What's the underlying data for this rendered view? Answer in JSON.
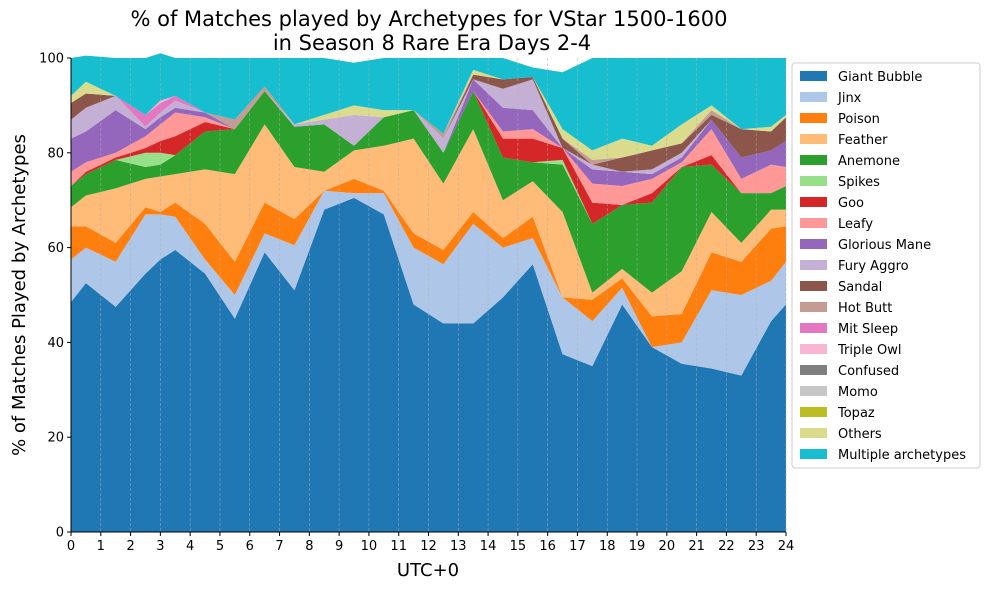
{
  "chart_data": {
    "type": "area",
    "stacked": true,
    "title": "% of Matches played by Archetypes for VStar 1500-1600",
    "subtitle": "in Season 8 Rare Era Days 2-4",
    "xlabel": "UTC+0",
    "ylabel": "% of Matches Played by Archetypes",
    "xlim": [
      0,
      24
    ],
    "ylim": [
      0,
      100
    ],
    "x_ticks": [
      "0",
      "1",
      "2",
      "3",
      "4",
      "5",
      "6",
      "7",
      "8",
      "9",
      "10",
      "11",
      "12",
      "13",
      "14",
      "15",
      "16",
      "17",
      "18",
      "19",
      "20",
      "21",
      "22",
      "23",
      "24"
    ],
    "y_ticks": [
      "0",
      "20",
      "40",
      "60",
      "80",
      "100"
    ],
    "grid_x": true,
    "grid_y": false,
    "legend_position": "outside-right",
    "x": [
      0,
      0.5,
      1.5,
      2.5,
      3,
      3.5,
      4.5,
      5.5,
      6.5,
      7.5,
      8.5,
      9.5,
      10.5,
      11.5,
      12.5,
      13.5,
      14.5,
      15.5,
      16.5,
      17.5,
      18.5,
      19.5,
      20.5,
      21.5,
      22.5,
      23.5,
      24
    ],
    "series": [
      {
        "name": "Giant Bubble",
        "color": "#1f77b4",
        "values": [
          48.5,
          52.5,
          47.5,
          54.5,
          57.5,
          59.5,
          54.5,
          45,
          59,
          51,
          68,
          70.5,
          67,
          48,
          44,
          44,
          49.5,
          56.5,
          37.5,
          35,
          48,
          39,
          35.5,
          34.5,
          33,
          44.5,
          48
        ]
      },
      {
        "name": "Jinx",
        "color": "#aec7e8",
        "values": [
          9,
          7.5,
          9.5,
          12.5,
          9.5,
          7,
          3,
          5,
          4,
          9.5,
          4,
          1,
          4.5,
          12,
          12.5,
          21,
          10.5,
          5.5,
          12,
          9.5,
          3.5,
          0,
          4.5,
          16.5,
          17,
          8.5,
          9
        ]
      },
      {
        "name": "Poison",
        "color": "#ff7f0e",
        "values": [
          7,
          4.5,
          4,
          1.5,
          0.5,
          3,
          7.5,
          7,
          6.5,
          5.5,
          0,
          3,
          0.5,
          3,
          3,
          2.5,
          2,
          4.5,
          0,
          4.5,
          2,
          6.5,
          6,
          8,
          7,
          11,
          7.5
        ]
      },
      {
        "name": "Feather",
        "color": "#ffbb78",
        "values": [
          4,
          6.5,
          11.5,
          6,
          7.5,
          6,
          11.5,
          18.5,
          16.5,
          11,
          4,
          6,
          9.5,
          20,
          14,
          17.5,
          8,
          7.5,
          18,
          1.5,
          2,
          5,
          9,
          8.5,
          4,
          4,
          3.5
        ]
      },
      {
        "name": "Anemone",
        "color": "#2ca02c",
        "values": [
          4.5,
          4.5,
          6,
          2.5,
          2.5,
          4,
          8,
          9.5,
          7,
          8.5,
          10,
          1,
          6,
          6,
          6.5,
          8,
          9,
          4,
          10,
          14.5,
          13.5,
          19,
          22,
          10,
          10.5,
          3.5,
          5
        ]
      },
      {
        "name": "Spikes",
        "color": "#98df8a",
        "values": [
          0,
          0,
          0,
          3,
          2.5,
          0,
          0,
          0,
          0,
          0,
          0,
          0,
          0,
          0,
          0,
          0,
          0,
          0,
          1,
          0,
          0,
          0,
          0,
          0,
          0,
          0,
          0
        ]
      },
      {
        "name": "Goo",
        "color": "#d62728",
        "values": [
          0,
          0.5,
          0.5,
          1,
          2.5,
          4,
          2,
          0,
          0,
          0,
          0,
          0,
          0,
          0,
          0,
          0,
          4,
          5,
          2.5,
          4.5,
          0,
          2,
          0,
          2,
          0,
          0,
          0
        ]
      },
      {
        "name": "Leafy",
        "color": "#ff9896",
        "values": [
          3,
          2,
          1,
          2.5,
          3.5,
          5,
          1,
          0,
          0,
          0,
          0,
          0,
          0,
          0,
          0,
          0,
          1.5,
          2,
          0,
          4,
          4,
          3,
          1,
          5.5,
          3,
          6,
          4
        ]
      },
      {
        "name": "Glorious Mane",
        "color": "#9467bd",
        "values": [
          7,
          6.5,
          9,
          1.5,
          1.5,
          1,
          1,
          0,
          0,
          0,
          0,
          0,
          0,
          0,
          0,
          2.5,
          5,
          4,
          0,
          3,
          3,
          1,
          1,
          2,
          4.5,
          3,
          5.5
        ]
      },
      {
        "name": "Fury Aggro",
        "color": "#c5b0d5",
        "values": [
          4,
          5,
          3,
          0.5,
          1,
          1.5,
          0,
          0,
          0,
          0.5,
          1,
          6.5,
          0,
          0,
          3,
          0,
          4,
          6.5,
          0,
          1,
          0,
          1,
          1,
          0,
          0,
          0,
          0
        ]
      },
      {
        "name": "Sandal",
        "color": "#8c564b",
        "values": [
          3.5,
          3,
          0,
          0,
          0,
          0,
          0,
          0,
          0,
          0,
          0,
          0,
          0,
          0,
          0,
          1,
          2,
          0.5,
          2,
          0,
          3,
          4,
          2,
          1,
          6,
          4,
          5
        ]
      },
      {
        "name": "Hot Butt",
        "color": "#c49c94",
        "values": [
          0,
          0,
          0,
          0,
          0,
          0,
          0,
          2,
          1,
          0,
          0,
          0,
          0,
          0,
          1,
          0,
          0,
          0,
          0,
          1,
          0,
          0,
          0,
          1,
          0,
          0,
          0
        ]
      },
      {
        "name": "Mit Sleep",
        "color": "#e377c2",
        "values": [
          0,
          0,
          0,
          2.5,
          2,
          1,
          0,
          0,
          0,
          0,
          0,
          0,
          0,
          0,
          0,
          0,
          0,
          0,
          0,
          0,
          0,
          0,
          0,
          0,
          0,
          0,
          0
        ]
      },
      {
        "name": "Triple Owl",
        "color": "#f7b6d2",
        "values": [
          0,
          0,
          0,
          0,
          0.5,
          0,
          0,
          0,
          0,
          0,
          0,
          0,
          0,
          0,
          0,
          0,
          0,
          0,
          0,
          0,
          0,
          0,
          0,
          0,
          0,
          0,
          0
        ]
      },
      {
        "name": "Confused",
        "color": "#7f7f7f",
        "values": [
          0,
          0,
          0,
          0,
          0,
          0,
          0,
          0,
          0,
          0,
          0,
          0,
          0,
          0,
          0,
          0,
          0,
          0,
          0,
          0,
          0,
          0,
          0,
          0,
          0,
          0,
          0
        ]
      },
      {
        "name": "Momo",
        "color": "#c7c7c7",
        "values": [
          0,
          0,
          0,
          0,
          0,
          0,
          0,
          0,
          0,
          0,
          0,
          0,
          0,
          0,
          0,
          0,
          0,
          0,
          0,
          0,
          0,
          0,
          0,
          0,
          0,
          0,
          0
        ]
      },
      {
        "name": "Topaz",
        "color": "#bcbd22",
        "values": [
          0,
          0,
          0,
          0,
          0,
          0,
          0,
          0,
          0,
          0,
          0,
          0,
          0,
          0,
          0,
          0,
          0,
          0,
          0,
          0,
          0,
          0,
          0,
          0,
          0,
          0,
          0
        ]
      },
      {
        "name": "Others",
        "color": "#dbdb8d",
        "values": [
          1.5,
          2.5,
          0,
          0,
          0,
          0,
          0,
          0,
          0,
          0,
          1,
          2,
          1.5,
          0,
          0,
          1,
          0,
          0,
          2,
          2,
          4,
          1,
          4,
          1,
          0,
          1,
          0.5
        ]
      },
      {
        "name": "Multiple archetypes",
        "color": "#17becf",
        "values": [
          8,
          5.5,
          8,
          12,
          10,
          8,
          11.5,
          13,
          6,
          14,
          12,
          9,
          11,
          11,
          16,
          2.5,
          4.5,
          2,
          12,
          19.5,
          17,
          18.5,
          14,
          10,
          15,
          14.5,
          12
        ]
      }
    ]
  }
}
